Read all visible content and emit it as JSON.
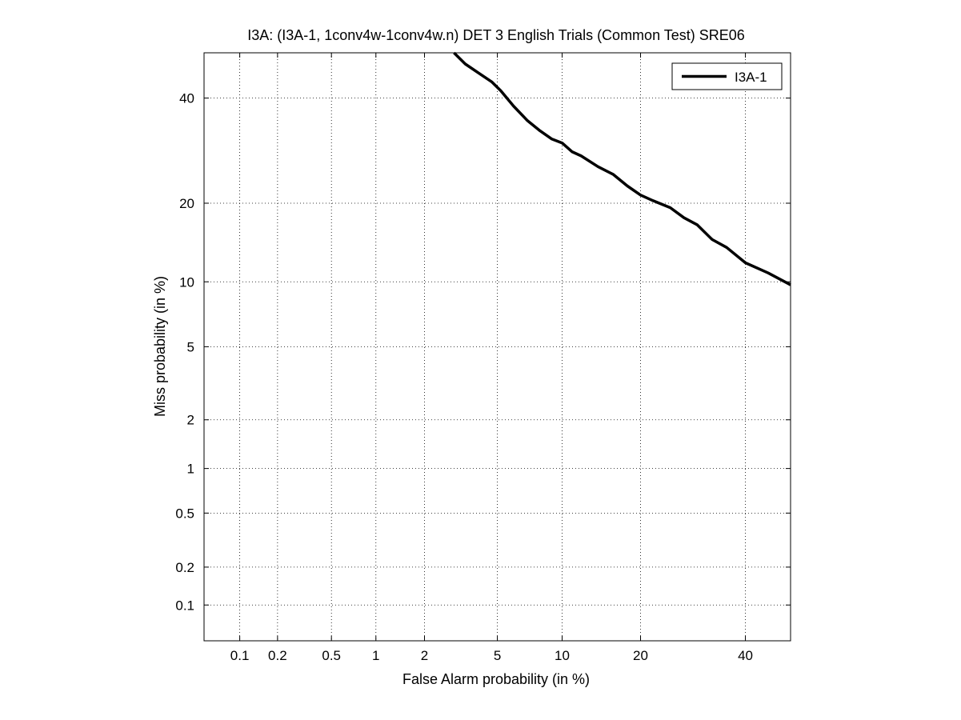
{
  "chart_data": {
    "type": "line",
    "title": "I3A: (I3A-1, 1conv4w-1conv4w.n) DET 3 English Trials (Common Test) SRE06",
    "xlabel": "False Alarm probability (in %)",
    "ylabel": "Miss probability (in %)",
    "x_scale": "probit",
    "y_scale": "probit",
    "xlim": [
      0.05,
      50
    ],
    "ylim": [
      0.05,
      50
    ],
    "grid": true,
    "legend_position": "top-right",
    "x_ticks": [
      0.1,
      0.2,
      0.5,
      1,
      2,
      5,
      10,
      20,
      40
    ],
    "x_tick_labels": [
      "0.1",
      "0.2",
      "0.5",
      "1",
      "2",
      "5",
      "10",
      "20",
      "40"
    ],
    "y_ticks": [
      0.1,
      0.2,
      0.5,
      1,
      2,
      5,
      10,
      20,
      40
    ],
    "y_tick_labels": [
      "0.1",
      "0.2",
      "0.5",
      "1",
      "2",
      "5",
      "10",
      "20",
      "40"
    ],
    "series": [
      {
        "name": "I3A-1",
        "color": "#000000",
        "x": [
          2.95,
          3.4,
          4.0,
          4.7,
          5.2,
          6.0,
          7.0,
          8.0,
          9.0,
          10.0,
          11.0,
          12.0,
          14.0,
          16.0,
          18.0,
          20.0,
          22.0,
          25.0,
          27.5,
          30.0,
          33.0,
          36.0,
          40.0,
          45.0,
          50.0
        ],
        "y": [
          50.0,
          47.5,
          45.5,
          43.5,
          41.6,
          38.3,
          35.2,
          33.1,
          31.5,
          30.7,
          29.0,
          28.2,
          26.2,
          24.8,
          22.8,
          21.3,
          20.4,
          19.3,
          17.8,
          16.8,
          14.8,
          13.8,
          12.0,
          10.9,
          9.7
        ]
      }
    ]
  }
}
